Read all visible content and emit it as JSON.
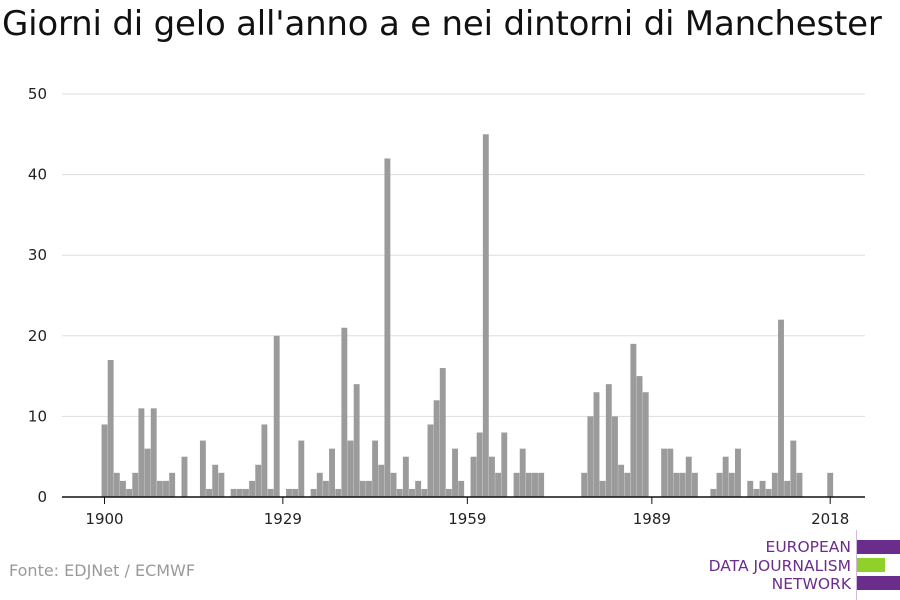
{
  "title": "Giorni di gelo all'anno a e nei dintorni di Manchester",
  "source": "Fonte: EDJNet / ECMWF",
  "logo": {
    "line1": "EUROPEAN",
    "line2": "DATA JOURNALISM",
    "line3": "NETWORK"
  },
  "colors": {
    "bar": "#9b9b9b",
    "grid": "#dddddd",
    "axis": "#111111",
    "logo_purple": "#6b2d8c",
    "logo_green": "#8fd12a"
  },
  "chart_data": {
    "type": "bar",
    "title": "Giorni di gelo all'anno a e nei dintorni di Manchester",
    "xlabel": "",
    "ylabel": "",
    "ylim": [
      0,
      50
    ],
    "y_ticks": [
      0,
      10,
      20,
      30,
      40,
      50
    ],
    "x_ticks": [
      1900,
      1929,
      1959,
      1989,
      2018
    ],
    "x_range": [
      1900,
      2018
    ],
    "grid": true,
    "categories": [
      1900,
      1901,
      1902,
      1903,
      1904,
      1905,
      1906,
      1907,
      1908,
      1909,
      1910,
      1911,
      1912,
      1913,
      1914,
      1915,
      1916,
      1917,
      1918,
      1919,
      1920,
      1921,
      1922,
      1923,
      1924,
      1925,
      1926,
      1927,
      1928,
      1929,
      1930,
      1931,
      1932,
      1933,
      1934,
      1935,
      1936,
      1937,
      1938,
      1939,
      1940,
      1941,
      1942,
      1943,
      1944,
      1945,
      1946,
      1947,
      1948,
      1949,
      1950,
      1951,
      1952,
      1953,
      1954,
      1955,
      1956,
      1957,
      1958,
      1959,
      1960,
      1961,
      1962,
      1963,
      1964,
      1965,
      1966,
      1967,
      1968,
      1969,
      1970,
      1971,
      1972,
      1973,
      1974,
      1975,
      1976,
      1977,
      1978,
      1979,
      1980,
      1981,
      1982,
      1983,
      1984,
      1985,
      1986,
      1987,
      1988,
      1989,
      1990,
      1991,
      1992,
      1993,
      1994,
      1995,
      1996,
      1997,
      1998,
      1999,
      2000,
      2001,
      2002,
      2003,
      2004,
      2005,
      2006,
      2007,
      2008,
      2009,
      2010,
      2011,
      2012,
      2013,
      2014,
      2015,
      2016,
      2017,
      2018
    ],
    "values": [
      9,
      17,
      3,
      2,
      1,
      3,
      11,
      6,
      11,
      2,
      2,
      3,
      0,
      5,
      0,
      0,
      7,
      1,
      4,
      3,
      0,
      1,
      1,
      1,
      2,
      4,
      9,
      1,
      20,
      0,
      1,
      1,
      7,
      0,
      1,
      3,
      2,
      6,
      1,
      21,
      7,
      14,
      2,
      2,
      7,
      4,
      42,
      3,
      1,
      5,
      1,
      2,
      1,
      9,
      12,
      16,
      1,
      6,
      2,
      0,
      5,
      8,
      45,
      5,
      3,
      8,
      0,
      3,
      6,
      3,
      3,
      3,
      0,
      0,
      0,
      0,
      0,
      0,
      3,
      10,
      13,
      2,
      14,
      10,
      4,
      3,
      19,
      15,
      13,
      0,
      0,
      6,
      6,
      3,
      3,
      5,
      3,
      0,
      0,
      1,
      3,
      5,
      3,
      6,
      0,
      2,
      1,
      2,
      1,
      3,
      22,
      2,
      7,
      3,
      0,
      0,
      0,
      0,
      3
    ]
  }
}
